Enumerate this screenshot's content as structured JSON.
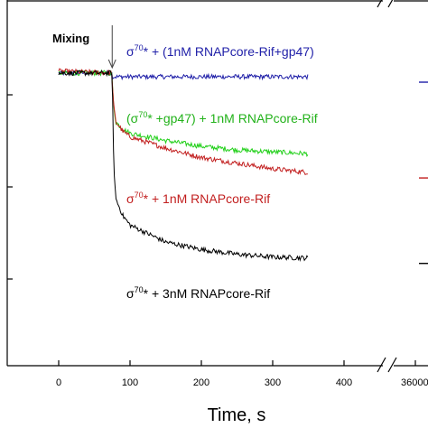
{
  "chart_data": {
    "type": "line",
    "title": "",
    "xlabel": "Time, s",
    "ylabel": "",
    "xlim": [
      -30,
      400
    ],
    "x_ticks": [
      0,
      100,
      200,
      300,
      400
    ],
    "x_tick_labels": [
      "0",
      "100",
      "200",
      "300",
      "400"
    ],
    "x_break_tick_label": "36000",
    "grid": false,
    "legend": "none",
    "mixing_label": "Mixing",
    "mixing_time": 75,
    "series": [
      {
        "id": "blue",
        "color": "#1f1fa8",
        "label": {
          "pre": "σ",
          "sup": "70",
          "post": "* + (1nM RNAPcore-Rif+gp47)"
        },
        "points": [
          [
            0,
            1.02
          ],
          [
            75,
            1.02
          ],
          [
            75,
            1.0
          ],
          [
            100,
            1.0
          ],
          [
            200,
            1.0
          ],
          [
            350,
            1.0
          ]
        ]
      },
      {
        "id": "green",
        "color": "#22d01a",
        "label": {
          "pre": "(σ",
          "sup": "70",
          "post": "* +gp47) + 1nM RNAPcore-Rif"
        },
        "points": [
          [
            0,
            1.02
          ],
          [
            75,
            1.02
          ],
          [
            76,
            0.88
          ],
          [
            80,
            0.76
          ],
          [
            90,
            0.72
          ],
          [
            100,
            0.7
          ],
          [
            150,
            0.66
          ],
          [
            200,
            0.63
          ],
          [
            250,
            0.61
          ],
          [
            300,
            0.6
          ],
          [
            350,
            0.59
          ]
        ]
      },
      {
        "id": "red",
        "color": "#c21f1f",
        "label": {
          "pre": "σ",
          "sup": "70",
          "post": "* + 1nM RNAPcore-Rif"
        },
        "points": [
          [
            0,
            1.03
          ],
          [
            75,
            1.02
          ],
          [
            76,
            0.88
          ],
          [
            80,
            0.76
          ],
          [
            90,
            0.71
          ],
          [
            100,
            0.68
          ],
          [
            150,
            0.62
          ],
          [
            200,
            0.57
          ],
          [
            250,
            0.54
          ],
          [
            300,
            0.51
          ],
          [
            350,
            0.49
          ]
        ]
      },
      {
        "id": "black",
        "color": "#000000",
        "label": {
          "pre": "σ",
          "sup": "70",
          "post": "* + 3nM RNAPcore-Rif"
        },
        "points": [
          [
            0,
            1.02
          ],
          [
            75,
            1.02
          ],
          [
            77,
            0.55
          ],
          [
            80,
            0.35
          ],
          [
            90,
            0.26
          ],
          [
            100,
            0.21
          ],
          [
            150,
            0.12
          ],
          [
            200,
            0.08
          ],
          [
            250,
            0.055
          ],
          [
            300,
            0.04
          ],
          [
            350,
            0.035
          ]
        ]
      }
    ]
  }
}
